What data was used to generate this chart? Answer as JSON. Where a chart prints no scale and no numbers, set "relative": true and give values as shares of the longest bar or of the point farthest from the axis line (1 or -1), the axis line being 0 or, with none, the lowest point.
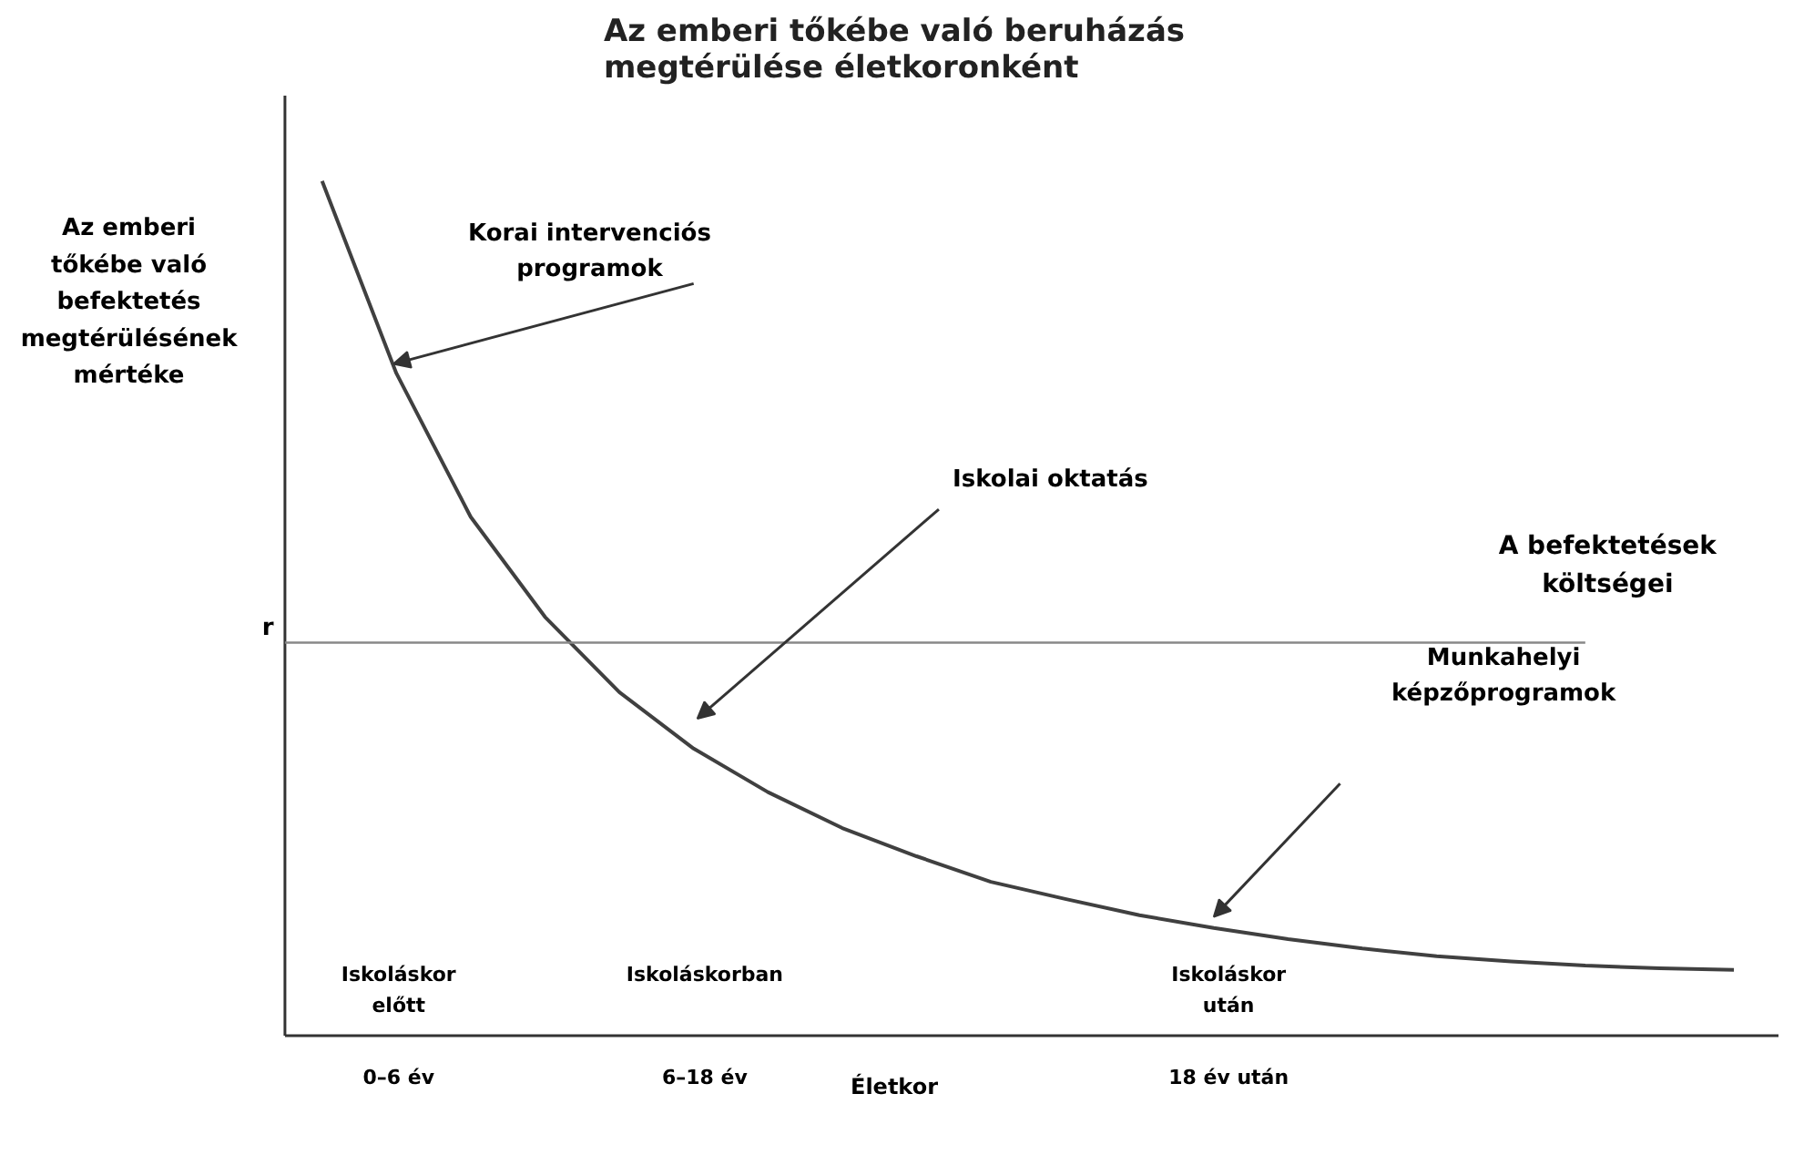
{
  "chart_data": {
    "type": "line",
    "relative": true,
    "title": "Az emberi tőkébe való beruházás\nmegtérülése életkoronként",
    "xlabel": "Életkor",
    "ylabel": "Az emberi\ntőkébe való\nbefektetés\nmegtérülésének\nmértéke",
    "categories": [
      null,
      null,
      null,
      null,
      null,
      null,
      null,
      null,
      null,
      null,
      null,
      null,
      null,
      null,
      null,
      null,
      null,
      null,
      null,
      null
    ],
    "series": [
      {
        "color": "#404040",
        "values": [
          1.0,
          0.775,
          0.607,
          0.49,
          0.402,
          0.336,
          0.285,
          0.243,
          0.21,
          0.18,
          0.16,
          0.141,
          0.126,
          0.113,
          0.102,
          0.093,
          0.087,
          0.082,
          0.079,
          0.077
        ]
      }
    ],
    "ref_lines": [
      {
        "axis": "y",
        "value": 0.46,
        "label": "r",
        "color": "#888888"
      }
    ],
    "annotations": [
      "Korai intervenciós\nprogramok",
      "Iskolai oktatás",
      "Munkahelyi\nképzőprogramok",
      "A befektetések\nköltségei",
      "Iskoláskor\nelőtt",
      "Iskoláskorban",
      "Iskoláskor\nután",
      "0–6 év",
      "6–18 év",
      "18 év után"
    ],
    "line_style": "solid"
  }
}
